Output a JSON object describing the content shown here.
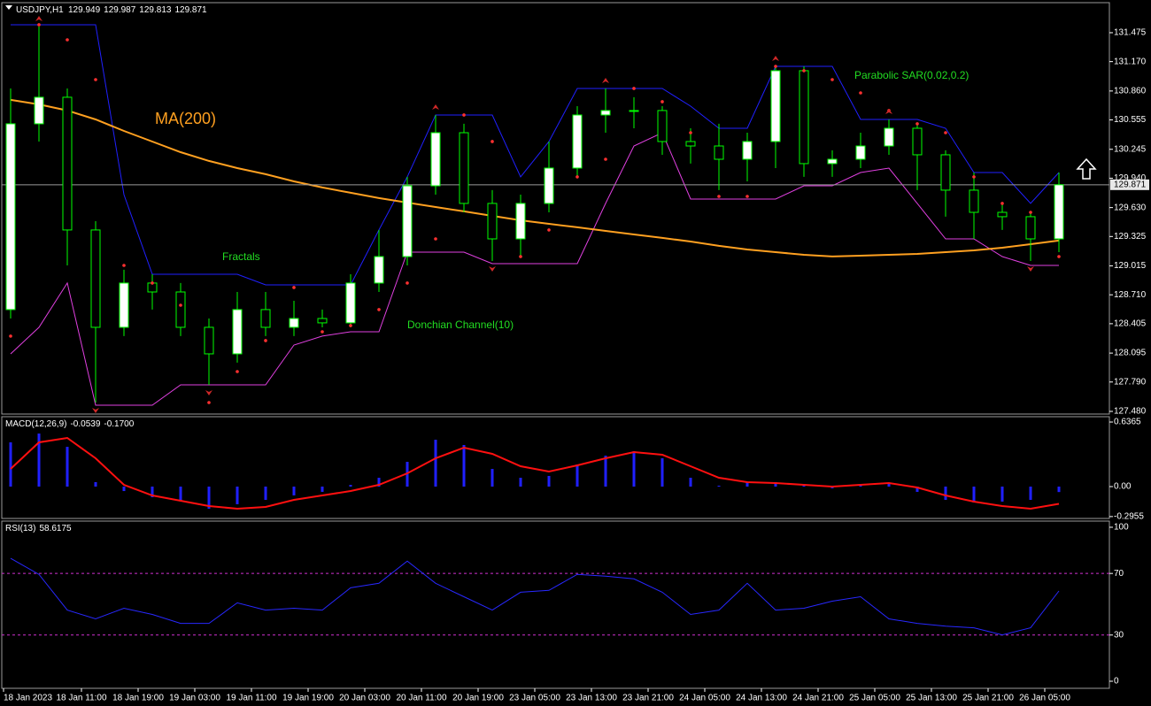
{
  "chart_data": [
    {
      "type": "candlestick",
      "title": "USDJPY,H1",
      "header_values": [
        129.949,
        129.987,
        129.813,
        129.871
      ],
      "x": [
        1,
        5,
        9,
        13,
        17,
        21,
        25,
        29,
        33,
        37,
        41,
        45,
        49,
        53,
        57,
        61,
        65,
        69,
        73,
        77,
        81,
        85,
        89,
        93,
        97,
        101,
        105,
        109,
        113,
        117,
        121,
        125,
        129,
        133,
        137,
        141,
        145,
        149
      ],
      "open": [
        128.554,
        130.514,
        130.794,
        129.394,
        128.367,
        128.834,
        128.74,
        128.367,
        128.087,
        128.554,
        128.367,
        128.46,
        128.414,
        128.834,
        129.113,
        129.86,
        130.42,
        129.674,
        129.3,
        129.674,
        130.047,
        130.607,
        130.654,
        130.654,
        130.327,
        130.28,
        130.14,
        130.327,
        131.074,
        130.094,
        130.14,
        130.28,
        130.467,
        130.187,
        129.814,
        129.58,
        129.534,
        129.3
      ],
      "high": [
        130.887,
        131.54,
        130.887,
        129.487,
        128.974,
        128.927,
        128.834,
        128.46,
        128.74,
        128.74,
        128.647,
        128.554,
        128.927,
        129.394,
        129.954,
        130.607,
        130.514,
        129.814,
        129.767,
        130.327,
        130.7,
        130.887,
        130.794,
        130.7,
        130.467,
        130.514,
        130.42,
        131.12,
        131.12,
        130.234,
        130.42,
        130.56,
        130.514,
        130.234,
        130.0,
        129.674,
        129.58,
        130.0
      ],
      "low": [
        128.46,
        130.327,
        129.02,
        127.573,
        128.274,
        128.554,
        128.274,
        127.76,
        127.994,
        128.274,
        128.274,
        128.367,
        128.367,
        128.74,
        129.02,
        129.767,
        129.58,
        129.067,
        129.113,
        129.58,
        129.954,
        130.42,
        130.467,
        130.187,
        130.094,
        129.814,
        129.907,
        130.047,
        129.954,
        129.954,
        130.047,
        130.187,
        129.814,
        129.534,
        129.3,
        129.394,
        129.067,
        129.16
      ],
      "close": [
        130.514,
        130.794,
        129.394,
        128.367,
        128.834,
        128.74,
        128.367,
        128.087,
        128.554,
        128.367,
        128.46,
        128.414,
        128.834,
        129.113,
        129.86,
        130.42,
        129.674,
        129.3,
        129.674,
        130.047,
        130.607,
        130.654,
        130.654,
        130.327,
        130.28,
        130.14,
        130.327,
        131.074,
        130.094,
        130.14,
        130.28,
        130.467,
        130.187,
        129.814,
        129.58,
        129.534,
        129.3,
        129.871
      ],
      "up_color": "#ffffff",
      "down_color": "#000000",
      "wick_color": "#00ff00",
      "ma": {
        "label": "MA(200)",
        "color": "#ffa020",
        "values": [
          130.766,
          130.719,
          130.654,
          130.56,
          130.439,
          130.327,
          130.215,
          130.122,
          130.047,
          129.982,
          129.907,
          129.842,
          129.786,
          129.73,
          129.683,
          129.636,
          129.59,
          129.543,
          129.496,
          129.459,
          129.422,
          129.384,
          129.347,
          129.31,
          129.272,
          129.226,
          129.188,
          129.16,
          129.132,
          129.114,
          129.123,
          129.132,
          129.141,
          129.16,
          129.179,
          129.207,
          129.244,
          129.282
        ]
      },
      "donchian": {
        "label": "Donchian Channel(10)",
        "upper_color": "#2020ff",
        "lower_color": "#e040e0",
        "upper": [
          131.559,
          131.559,
          131.559,
          131.559,
          129.767,
          128.927,
          128.927,
          128.927,
          128.927,
          128.815,
          128.815,
          128.815,
          128.815,
          129.394,
          129.954,
          130.607,
          130.607,
          130.607,
          129.954,
          130.327,
          130.887,
          130.887,
          130.887,
          130.887,
          130.7,
          130.467,
          130.467,
          131.12,
          131.12,
          131.12,
          130.56,
          130.56,
          130.56,
          130.467,
          130.0,
          130.0,
          129.674,
          130.0
        ],
        "lower": [
          128.087,
          128.367,
          128.834,
          127.545,
          127.545,
          127.545,
          127.76,
          127.76,
          127.76,
          127.76,
          128.18,
          128.274,
          128.32,
          128.32,
          129.16,
          129.16,
          129.16,
          129.039,
          129.039,
          129.039,
          129.039,
          129.674,
          130.28,
          130.42,
          129.72,
          129.72,
          129.72,
          129.72,
          129.86,
          129.86,
          130.0,
          130.047,
          129.674,
          129.3,
          129.3,
          129.113,
          129.02,
          129.02
        ]
      },
      "sar": {
        "label": "Parabolic SAR(0.02,0.2)",
        "color": "#ff3030",
        "values": [
          128.274,
          131.559,
          131.4,
          130.98,
          129.02,
          128.834,
          128.6,
          127.573,
          127.9,
          128.227,
          128.787,
          128.32,
          128.385,
          128.554,
          128.834,
          129.3,
          130.607,
          130.327,
          129.113,
          129.394,
          129.954,
          130.14,
          130.887,
          130.747,
          130.42,
          129.748,
          129.748,
          131.12,
          131.074,
          130.98,
          130.84,
          130.654,
          130.514,
          130.42,
          129.954,
          129.674,
          129.58,
          129.113
        ]
      },
      "fractals": {
        "label": "Fractals",
        "color": "#d02828",
        "up_x": [
          5,
          61,
          85,
          109,
          125
        ],
        "up": [
          131.54,
          130.607,
          130.887,
          131.12,
          130.56
        ],
        "down_x": [
          13,
          29,
          69,
          145
        ],
        "down": [
          127.573,
          127.76,
          129.067,
          129.067
        ]
      },
      "last_price": 129.871,
      "xlim": [
        0,
        156
      ],
      "ylim": [
        127.452,
        131.792
      ],
      "yticks": [
        131.475,
        {
          "value": 131.17,
          "label": "131.170"
        },
        {
          "value": 130.86,
          "label": "130.860"
        },
        130.555,
        130.245,
        {
          "value": 129.94,
          "label": "129.940"
        },
        {
          "value": 129.63,
          "label": "129.630"
        },
        129.325,
        129.015,
        {
          "value": 128.71,
          "label": "128.710"
        },
        128.405,
        128.095,
        {
          "value": 127.79,
          "label": "127.790"
        },
        {
          "value": 127.48,
          "label": "127.480"
        }
      ]
    },
    {
      "type": "macd",
      "title": "MACD(12,26,9)",
      "header_values": [
        -0.0539,
        {
          "value": -0.17,
          "label": "-0.1700"
        }
      ],
      "x": [
        1,
        5,
        9,
        13,
        17,
        21,
        25,
        29,
        33,
        37,
        41,
        45,
        49,
        53,
        57,
        61,
        65,
        69,
        73,
        77,
        81,
        85,
        89,
        93,
        97,
        101,
        105,
        109,
        113,
        117,
        121,
        125,
        129,
        133,
        137,
        141,
        145,
        149
      ],
      "histogram": {
        "color": "#2020ff",
        "values": [
          0.436,
          0.523,
          0.392,
          0.044,
          -0.044,
          -0.105,
          -0.14,
          -0.218,
          -0.174,
          -0.131,
          -0.087,
          -0.052,
          0.017,
          0.087,
          0.244,
          0.462,
          0.41,
          0.174,
          0.087,
          0.105,
          0.218,
          0.305,
          0.349,
          0.279,
          0.087,
          0.009,
          0.044,
          0.044,
          0.017,
          -0.017,
          0.017,
          0.026,
          -0.052,
          -0.131,
          -0.157,
          -0.148,
          -0.131,
          -0.0539
        ]
      },
      "signal": {
        "color": "#ff1010",
        "values": [
          0.174,
          0.436,
          0.48,
          0.279,
          0.017,
          -0.087,
          -0.14,
          -0.192,
          -0.218,
          -0.201,
          -0.131,
          -0.087,
          -0.044,
          0.017,
          0.131,
          0.279,
          0.384,
          0.323,
          0.201,
          0.148,
          0.209,
          0.279,
          0.34,
          0.314,
          0.201,
          0.087,
          0.044,
          0.035,
          0.017,
          0,
          0.017,
          0.035,
          -0.009,
          -0.087,
          -0.148,
          -0.192,
          -0.218,
          -0.17
        ]
      },
      "xlim": [
        0,
        156
      ],
      "ylim": [
        -0.314,
        0.689
      ],
      "yticks": [
        0.6365,
        {
          "value": 0,
          "label": "0.00"
        },
        -0.2955
      ]
    },
    {
      "type": "rsi",
      "title": "RSI(13)",
      "header_values": [
        58.6175
      ],
      "x": [
        1,
        5,
        9,
        13,
        17,
        21,
        25,
        29,
        33,
        37,
        41,
        45,
        49,
        53,
        57,
        61,
        65,
        69,
        73,
        77,
        81,
        85,
        89,
        93,
        97,
        101,
        105,
        109,
        113,
        117,
        121,
        125,
        129,
        133,
        137,
        141,
        145,
        149
      ],
      "values": [
        79.8,
        69.4,
        46.2,
        40.5,
        47.4,
        43.4,
        37.6,
        37.6,
        50.9,
        46.2,
        47.4,
        46.2,
        60.7,
        63.6,
        78.0,
        63.6,
        54.9,
        46.2,
        57.8,
        59.0,
        69.4,
        68.2,
        66.5,
        57.8,
        43.4,
        46.2,
        63.6,
        46.2,
        47.4,
        52.0,
        54.9,
        40.5,
        37.6,
        35.8,
        34.7,
        30.1,
        34.7,
        58.6175
      ],
      "color": "#2828ff",
      "levels": [
        70,
        30
      ],
      "level_color": "#d030d0",
      "xlim": [
        0,
        156
      ],
      "ylim": [
        -4.6,
        104
      ],
      "yticks": [
        100,
        70,
        30,
        0
      ],
      "xticks": [
        {
          "value": 0,
          "label": "18 Jan 2023"
        },
        {
          "value": 11,
          "label": "18 Jan 11:00"
        },
        {
          "value": 19,
          "label": "18 Jan 19:00"
        },
        {
          "value": 27,
          "label": "19 Jan 03:00"
        },
        {
          "value": 35,
          "label": "19 Jan 11:00"
        },
        {
          "value": 43,
          "label": "19 Jan 19:00"
        },
        {
          "value": 51,
          "label": "20 Jan 03:00"
        },
        {
          "value": 59,
          "label": "20 Jan 11:00"
        },
        {
          "value": 67,
          "label": "20 Jan 19:00"
        },
        {
          "value": 75,
          "label": "23 Jan 05:00"
        },
        {
          "value": 83,
          "label": "23 Jan 13:00"
        },
        {
          "value": 91,
          "label": "23 Jan 21:00"
        },
        {
          "value": 99,
          "label": "24 Jan 05:00"
        },
        {
          "value": 107,
          "label": "24 Jan 13:00"
        },
        {
          "value": 115,
          "label": "24 Jan 21:00"
        },
        {
          "value": 123,
          "label": "25 Jan 05:00"
        },
        {
          "value": 131,
          "label": "25 Jan 13:00"
        },
        {
          "value": 139,
          "label": "25 Jan 21:00"
        },
        {
          "value": 147,
          "label": "26 Jan 05:00"
        }
      ]
    }
  ]
}
